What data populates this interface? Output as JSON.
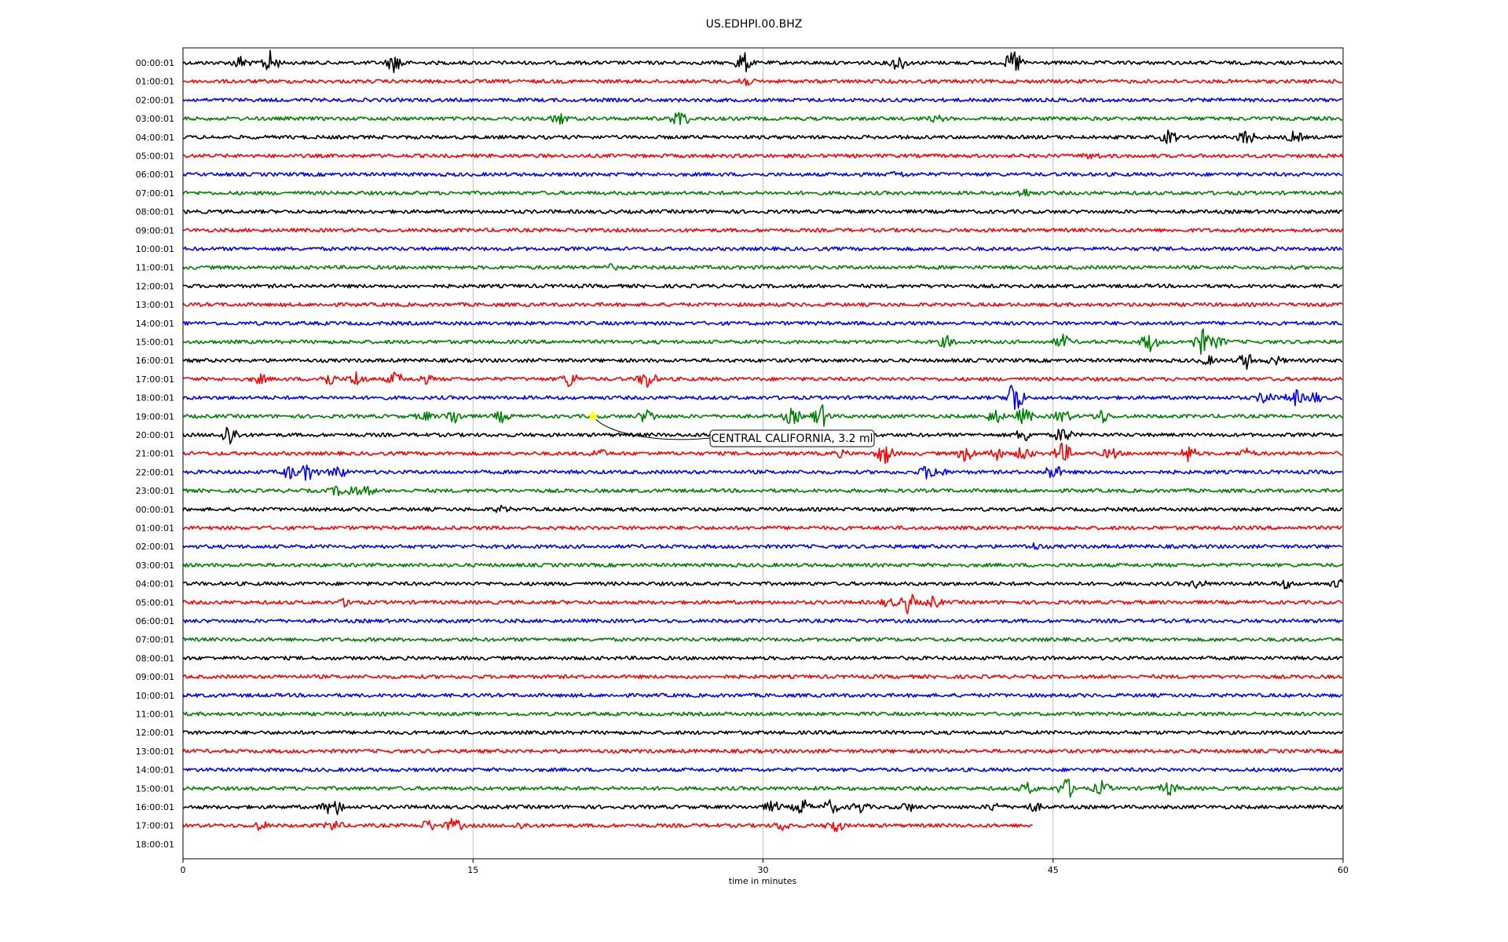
{
  "chart_data": {
    "type": "line",
    "title": "US.EDHPI.00.BHZ",
    "xlabel": "time in minutes",
    "ylabel": "",
    "xlim": [
      0,
      60
    ],
    "x_ticks": [
      0,
      15,
      30,
      45,
      60
    ],
    "x_tick_labels": [
      "0",
      "15",
      "30",
      "45",
      "60"
    ],
    "grid": "vertical lines at 15, 30, 45",
    "colors": [
      "#000000",
      "#ff0000",
      "#0000ff",
      "#008000"
    ],
    "rows": [
      {
        "label": "00:00:01",
        "color": "#000000",
        "end_min": 60,
        "bursts": [
          [
            3,
            0.5
          ],
          [
            4.5,
            0.9
          ],
          [
            11,
            0.8
          ],
          [
            29,
            0.8
          ],
          [
            37,
            0.6
          ],
          [
            43,
            1.0
          ]
        ]
      },
      {
        "label": "01:00:01",
        "color": "#ff0000",
        "end_min": 60,
        "bursts": [
          [
            29,
            0.4
          ]
        ]
      },
      {
        "label": "02:00:01",
        "color": "#0000ff",
        "end_min": 60,
        "bursts": []
      },
      {
        "label": "03:00:01",
        "color": "#008000",
        "end_min": 60,
        "bursts": [
          [
            19.5,
            0.4
          ],
          [
            25.7,
            0.7
          ],
          [
            39,
            0.2
          ]
        ]
      },
      {
        "label": "04:00:01",
        "color": "#000000",
        "end_min": 60,
        "bursts": [
          [
            51,
            0.5
          ],
          [
            55,
            0.6
          ],
          [
            57.5,
            0.4
          ]
        ]
      },
      {
        "label": "05:00:01",
        "color": "#ff0000",
        "end_min": 60,
        "bursts": [
          [
            47,
            0.2
          ]
        ]
      },
      {
        "label": "06:00:01",
        "color": "#0000ff",
        "end_min": 60,
        "bursts": [
          [
            37,
            0.2
          ]
        ]
      },
      {
        "label": "07:00:01",
        "color": "#008000",
        "end_min": 60,
        "bursts": [
          [
            43.5,
            0.3
          ]
        ]
      },
      {
        "label": "08:00:01",
        "color": "#000000",
        "end_min": 60,
        "bursts": []
      },
      {
        "label": "09:00:01",
        "color": "#ff0000",
        "end_min": 60,
        "bursts": []
      },
      {
        "label": "10:00:01",
        "color": "#0000ff",
        "end_min": 60,
        "bursts": []
      },
      {
        "label": "11:00:01",
        "color": "#008000",
        "end_min": 60,
        "bursts": [
          [
            22,
            0.2
          ]
        ]
      },
      {
        "label": "12:00:01",
        "color": "#000000",
        "end_min": 60,
        "bursts": []
      },
      {
        "label": "13:00:01",
        "color": "#ff0000",
        "end_min": 60,
        "bursts": []
      },
      {
        "label": "14:00:01",
        "color": "#0000ff",
        "end_min": 60,
        "bursts": []
      },
      {
        "label": "15:00:01",
        "color": "#008000",
        "end_min": 60,
        "bursts": [
          [
            39.5,
            0.4
          ],
          [
            45.5,
            0.5
          ],
          [
            50,
            0.7
          ],
          [
            52.7,
            1.0
          ],
          [
            53.5,
            0.4
          ]
        ]
      },
      {
        "label": "16:00:01",
        "color": "#000000",
        "end_min": 60,
        "bursts": [
          [
            53,
            0.3
          ],
          [
            55,
            0.6
          ],
          [
            56.5,
            0.3
          ]
        ]
      },
      {
        "label": "17:00:01",
        "color": "#ff0000",
        "end_min": 60,
        "bursts": [
          [
            4,
            0.3
          ],
          [
            7.5,
            0.5
          ],
          [
            9,
            0.6
          ],
          [
            11,
            0.5
          ],
          [
            12.5,
            0.3
          ],
          [
            20,
            0.6
          ],
          [
            24,
            0.7
          ]
        ]
      },
      {
        "label": "18:00:01",
        "color": "#0000ff",
        "end_min": 60,
        "bursts": [
          [
            43,
            1.6
          ],
          [
            56,
            0.5
          ],
          [
            57.5,
            0.6
          ],
          [
            58.5,
            0.4
          ]
        ]
      },
      {
        "label": "19:00:01",
        "color": "#008000",
        "end_min": 60,
        "bursts": [
          [
            12.5,
            0.3
          ],
          [
            14,
            0.6
          ],
          [
            16.5,
            0.4
          ],
          [
            24,
            0.5
          ],
          [
            31.5,
            0.6
          ],
          [
            33,
            0.9
          ],
          [
            42,
            0.5
          ],
          [
            43.5,
            0.6
          ],
          [
            45.5,
            0.5
          ],
          [
            47.5,
            0.5
          ]
        ]
      },
      {
        "label": "20:00:01",
        "color": "#000000",
        "end_min": 60,
        "bursts": [
          [
            2.4,
            0.9
          ],
          [
            43.5,
            0.5
          ],
          [
            45.5,
            0.6
          ]
        ]
      },
      {
        "label": "21:00:01",
        "color": "#ff0000",
        "end_min": 60,
        "bursts": [
          [
            21.5,
            0.3
          ],
          [
            34,
            0.2
          ],
          [
            36.3,
            0.8
          ],
          [
            40.5,
            0.6
          ],
          [
            42,
            0.5
          ],
          [
            43.5,
            0.5
          ],
          [
            45.5,
            0.8
          ],
          [
            48,
            0.4
          ],
          [
            52,
            0.6
          ],
          [
            55,
            0.3
          ]
        ]
      },
      {
        "label": "22:00:01",
        "color": "#0000ff",
        "end_min": 60,
        "bursts": [
          [
            5.5,
            0.5
          ],
          [
            6.5,
            0.7
          ],
          [
            8,
            0.5
          ],
          [
            38.5,
            0.5
          ],
          [
            39,
            0.4
          ],
          [
            45,
            0.6
          ]
        ]
      },
      {
        "label": "23:00:01",
        "color": "#008000",
        "end_min": 60,
        "bursts": [
          [
            8,
            0.3
          ],
          [
            8.7,
            0.4
          ],
          [
            9.5,
            0.3
          ]
        ]
      },
      {
        "label": "00:00:01",
        "color": "#000000",
        "end_min": 60,
        "bursts": [
          [
            16.5,
            0.2
          ]
        ]
      },
      {
        "label": "01:00:01",
        "color": "#ff0000",
        "end_min": 60,
        "bursts": []
      },
      {
        "label": "02:00:01",
        "color": "#0000ff",
        "end_min": 60,
        "bursts": [
          [
            44,
            0.2
          ]
        ]
      },
      {
        "label": "03:00:01",
        "color": "#008000",
        "end_min": 60,
        "bursts": []
      },
      {
        "label": "04:00:01",
        "color": "#000000",
        "end_min": 60,
        "bursts": [
          [
            52.5,
            0.3
          ],
          [
            57,
            0.3
          ],
          [
            59.8,
            0.3
          ]
        ]
      },
      {
        "label": "05:00:01",
        "color": "#ff0000",
        "end_min": 60,
        "bursts": [
          [
            8.5,
            0.3
          ],
          [
            36.5,
            0.3
          ],
          [
            37.5,
            0.8
          ],
          [
            38.8,
            0.4
          ]
        ]
      },
      {
        "label": "06:00:01",
        "color": "#0000ff",
        "end_min": 60,
        "bursts": []
      },
      {
        "label": "07:00:01",
        "color": "#008000",
        "end_min": 60,
        "bursts": []
      },
      {
        "label": "08:00:01",
        "color": "#000000",
        "end_min": 60,
        "bursts": []
      },
      {
        "label": "09:00:01",
        "color": "#ff0000",
        "end_min": 60,
        "bursts": []
      },
      {
        "label": "10:00:01",
        "color": "#0000ff",
        "end_min": 60,
        "bursts": []
      },
      {
        "label": "11:00:01",
        "color": "#008000",
        "end_min": 60,
        "bursts": []
      },
      {
        "label": "12:00:01",
        "color": "#000000",
        "end_min": 60,
        "bursts": []
      },
      {
        "label": "13:00:01",
        "color": "#ff0000",
        "end_min": 60,
        "bursts": []
      },
      {
        "label": "14:00:01",
        "color": "#0000ff",
        "end_min": 60,
        "bursts": []
      },
      {
        "label": "15:00:01",
        "color": "#008000",
        "end_min": 60,
        "bursts": [
          [
            43.7,
            0.4
          ],
          [
            45.7,
            0.8
          ],
          [
            47.5,
            0.5
          ],
          [
            51,
            0.5
          ]
        ]
      },
      {
        "label": "16:00:01",
        "color": "#000000",
        "end_min": 60,
        "bursts": [
          [
            7.5,
            0.4
          ],
          [
            8,
            0.5
          ],
          [
            30.5,
            0.4
          ],
          [
            32,
            0.6
          ],
          [
            33.5,
            0.5
          ],
          [
            35,
            0.4
          ],
          [
            37.5,
            0.3
          ],
          [
            42,
            0.3
          ],
          [
            44,
            0.3
          ]
        ]
      },
      {
        "label": "17:00:01",
        "color": "#ff0000",
        "end_min": 43.97,
        "bursts": [
          [
            4,
            0.3
          ],
          [
            7.8,
            0.4
          ],
          [
            12.7,
            0.4
          ],
          [
            14,
            0.5
          ],
          [
            17.5,
            0.2
          ],
          [
            31,
            0.3
          ],
          [
            33.7,
            0.5
          ]
        ]
      },
      {
        "label": "18:00:01",
        "color": "#0000ff",
        "end_min": 0,
        "bursts": []
      }
    ],
    "annotations": [
      {
        "text": "CENTRAL CALIFORNIA, 3.2 ml",
        "row": 19,
        "minute": 21.2,
        "marker": "star",
        "marker_color": "#ffff00"
      }
    ]
  }
}
